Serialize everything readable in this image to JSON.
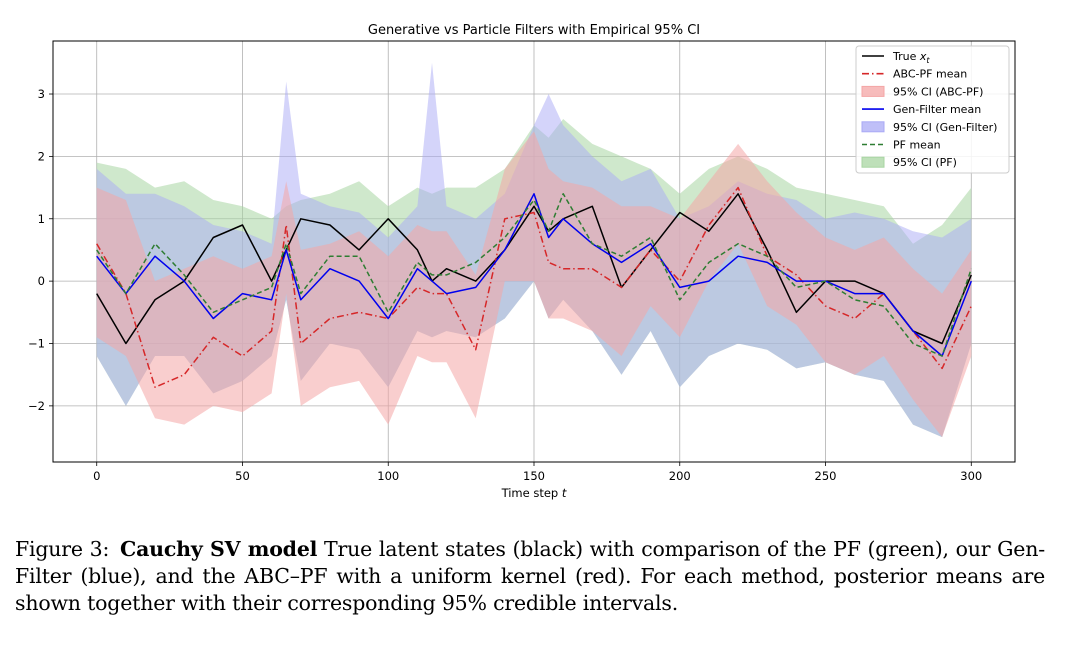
{
  "chart_data": {
    "type": "line",
    "title": "Generative vs Particle Filters with Empirical 95% CI",
    "xlabel": "Time step t",
    "ylabel": "",
    "xlim": [
      -15,
      315
    ],
    "ylim": [
      -2.9,
      3.85
    ],
    "xticks": [
      0,
      50,
      100,
      150,
      200,
      250,
      300
    ],
    "yticks": [
      -2,
      -1,
      0,
      1,
      2,
      3
    ],
    "ytick_labels": [
      "−2",
      "−1",
      "0",
      "1",
      "2",
      "3"
    ],
    "grid": true,
    "legend_position": "upper right",
    "legend": [
      {
        "label": "True x",
        "subscript": "t",
        "kind": "line",
        "color": "#000000",
        "dash": ""
      },
      {
        "label": "ABC-PF mean",
        "kind": "line",
        "color": "#d62728",
        "dash": "7,3,1.5,3"
      },
      {
        "label": "95% CI (ABC-PF)",
        "kind": "patch",
        "color": "#f4a6a6"
      },
      {
        "label": "Gen-Filter mean",
        "kind": "line",
        "color": "#0000ee",
        "dash": ""
      },
      {
        "label": "95% CI (Gen-Filter)",
        "kind": "patch",
        "color": "#aaaaf5"
      },
      {
        "label": "PF mean",
        "kind": "line",
        "color": "#2e7d32",
        "dash": "5,3"
      },
      {
        "label": "95% CI (PF)",
        "kind": "patch",
        "color": "#a8d5a2"
      }
    ],
    "x": [
      0,
      10,
      20,
      30,
      40,
      50,
      60,
      65,
      70,
      80,
      90,
      100,
      110,
      115,
      120,
      130,
      140,
      150,
      155,
      160,
      170,
      180,
      190,
      200,
      210,
      220,
      230,
      240,
      250,
      260,
      270,
      280,
      290,
      300
    ],
    "series": [
      {
        "name": "True x_t",
        "color": "#000000",
        "dash": "",
        "width": 1.5,
        "values": [
          -0.2,
          -1.0,
          -0.3,
          0.0,
          0.7,
          0.9,
          0.0,
          0.5,
          1.0,
          0.9,
          0.5,
          1.0,
          0.5,
          0.0,
          0.2,
          0.0,
          0.5,
          1.2,
          0.8,
          1.0,
          1.2,
          -0.1,
          0.5,
          1.1,
          0.8,
          1.4,
          0.5,
          -0.5,
          0.0,
          0.0,
          -0.2,
          -0.8,
          -1.0,
          0.1
        ]
      },
      {
        "name": "ABC-PF mean",
        "color": "#d62728",
        "dash": "7,3,1.5,3",
        "width": 1.5,
        "values": [
          0.6,
          -0.2,
          -1.7,
          -1.5,
          -0.9,
          -1.2,
          -0.8,
          0.9,
          -1.0,
          -0.6,
          -0.5,
          -0.6,
          -0.1,
          -0.2,
          -0.2,
          -1.1,
          1.0,
          1.1,
          0.3,
          0.2,
          0.2,
          -0.1,
          0.5,
          0.0,
          0.9,
          1.5,
          0.4,
          0.1,
          -0.4,
          -0.6,
          -0.2,
          -0.8,
          -1.4,
          -0.4
        ]
      },
      {
        "name": "Gen-Filter mean",
        "color": "#0000ee",
        "dash": "",
        "width": 1.5,
        "values": [
          0.4,
          -0.2,
          0.4,
          0.0,
          -0.6,
          -0.2,
          -0.3,
          0.5,
          -0.3,
          0.2,
          0.0,
          -0.6,
          0.2,
          0.0,
          -0.2,
          -0.1,
          0.5,
          1.4,
          0.7,
          1.0,
          0.6,
          0.3,
          0.6,
          -0.1,
          0.0,
          0.4,
          0.3,
          0.0,
          0.0,
          -0.2,
          -0.2,
          -0.8,
          -1.2,
          0.0
        ]
      },
      {
        "name": "PF mean",
        "color": "#2e7d32",
        "dash": "5,3",
        "width": 1.5,
        "values": [
          0.5,
          -0.2,
          0.6,
          0.1,
          -0.5,
          -0.3,
          -0.1,
          0.6,
          -0.2,
          0.4,
          0.4,
          -0.5,
          0.3,
          0.1,
          0.1,
          0.3,
          0.7,
          1.3,
          0.8,
          1.4,
          0.6,
          0.4,
          0.7,
          -0.3,
          0.3,
          0.6,
          0.4,
          -0.1,
          0.0,
          -0.3,
          -0.4,
          -1.0,
          -1.2,
          0.2
        ]
      }
    ],
    "bands": [
      {
        "name": "95% CI (PF)",
        "color": "#a8d5a2",
        "opacity": 0.55,
        "upper": [
          1.9,
          1.8,
          1.5,
          1.6,
          1.3,
          1.2,
          1.0,
          1.2,
          1.3,
          1.4,
          1.6,
          1.2,
          1.5,
          1.4,
          1.5,
          1.5,
          1.8,
          2.5,
          2.3,
          2.6,
          2.2,
          2.0,
          1.8,
          1.4,
          1.8,
          2.0,
          1.8,
          1.5,
          1.4,
          1.3,
          1.2,
          0.6,
          0.9,
          1.5
        ],
        "lower": [
          -1.2,
          -2.0,
          -1.2,
          -1.2,
          -1.8,
          -1.6,
          -1.2,
          -0.3,
          -1.6,
          -1.0,
          -1.1,
          -1.7,
          -0.8,
          -0.9,
          -0.8,
          -0.9,
          -0.6,
          0.0,
          -0.6,
          -0.3,
          -0.8,
          -1.5,
          -0.8,
          -1.7,
          -1.2,
          -1.0,
          -1.1,
          -1.4,
          -1.3,
          -1.5,
          -1.6,
          -2.3,
          -2.5,
          -1.0
        ]
      },
      {
        "name": "95% CI (Gen-Filter)",
        "color": "#aaaaf5",
        "opacity": 0.5,
        "upper": [
          1.8,
          1.4,
          1.4,
          1.2,
          0.9,
          0.8,
          0.6,
          3.2,
          1.4,
          1.2,
          1.1,
          0.7,
          1.2,
          3.5,
          1.2,
          1.0,
          1.4,
          2.5,
          3.0,
          2.5,
          2.0,
          1.6,
          1.8,
          1.0,
          1.2,
          1.6,
          1.4,
          1.3,
          1.0,
          1.1,
          1.0,
          0.8,
          0.7,
          1.0
        ]
      },
      {
        "name": "95% CI (ABC-PF)",
        "color": "#f4a6a6",
        "opacity": 0.55,
        "upper": [
          1.5,
          1.3,
          0.0,
          0.2,
          0.4,
          0.2,
          0.4,
          1.6,
          0.5,
          0.6,
          0.8,
          0.4,
          0.9,
          0.8,
          0.8,
          0.1,
          1.8,
          2.4,
          1.8,
          1.6,
          1.5,
          1.2,
          1.2,
          1.0,
          1.6,
          2.2,
          1.6,
          1.1,
          0.7,
          0.5,
          0.7,
          0.2,
          -0.2,
          0.5
        ],
        "lower": [
          -0.9,
          -1.2,
          -2.2,
          -2.3,
          -2.0,
          -2.1,
          -1.8,
          -0.2,
          -2.0,
          -1.7,
          -1.6,
          -2.3,
          -1.2,
          -1.3,
          -1.3,
          -2.2,
          0.0,
          0.0,
          -0.6,
          -0.6,
          -0.8,
          -1.2,
          -0.4,
          -0.9,
          0.0,
          0.6,
          -0.4,
          -0.7,
          -1.3,
          -1.5,
          -1.2,
          -1.9,
          -2.5,
          -1.2
        ]
      }
    ]
  },
  "caption": {
    "label": "Figure 3:",
    "title": "Cauchy SV model",
    "body": "True latent states (black) with comparison of the PF (green), our Gen-Filter (blue), and the ABC–PF with a uniform kernel (red). For each method, posterior means are shown together with their corresponding 95% credible intervals."
  }
}
